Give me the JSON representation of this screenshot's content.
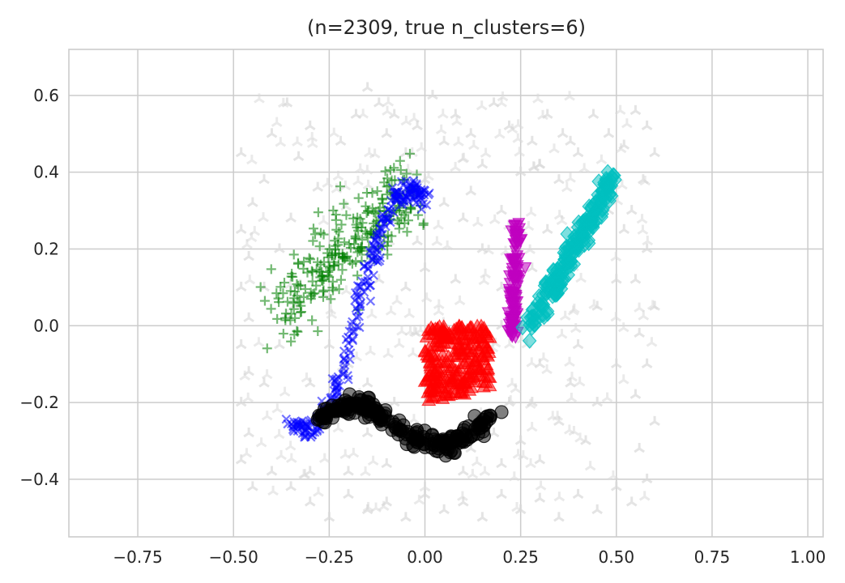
{
  "chart_data": {
    "type": "scatter",
    "title": "(n=2309, true n_clusters=6)",
    "xlabel": "",
    "ylabel": "",
    "xlim": [
      -0.93,
      1.04
    ],
    "ylim": [
      -0.55,
      0.72
    ],
    "grid": true,
    "legend": "none",
    "x_ticks": [
      -0.75,
      -0.5,
      -0.25,
      0.0,
      0.25,
      0.5,
      0.75,
      1.0
    ],
    "x_tick_labels": [
      "−0.75",
      "−0.50",
      "−0.25",
      "0.00",
      "0.25",
      "0.50",
      "0.75",
      "1.00"
    ],
    "y_ticks": [
      -0.4,
      -0.2,
      0.0,
      0.2,
      0.4,
      0.6
    ],
    "y_tick_labels": [
      "−0.4",
      "−0.2",
      "0.0",
      "0.2",
      "0.4",
      "0.6"
    ],
    "series": [
      {
        "marker": "tri",
        "color": "#d9d9d9",
        "description_points": [
          [
            -0.48,
            0.45
          ],
          [
            -0.45,
            0.32
          ],
          [
            -0.42,
            0.38
          ],
          [
            -0.4,
            0.5
          ],
          [
            -0.36,
            0.58
          ],
          [
            -0.33,
            0.44
          ],
          [
            -0.3,
            0.52
          ],
          [
            -0.28,
            0.36
          ],
          [
            -0.22,
            0.48
          ],
          [
            -0.18,
            0.55
          ],
          [
            -0.15,
            0.62
          ],
          [
            -0.12,
            0.58
          ],
          [
            -0.1,
            0.5
          ],
          [
            -0.08,
            0.55
          ],
          [
            -0.05,
            0.45
          ],
          [
            -0.02,
            0.52
          ],
          [
            0.02,
            0.6
          ],
          [
            0.05,
            0.48
          ],
          [
            0.08,
            0.55
          ],
          [
            0.12,
            0.5
          ],
          [
            0.15,
            0.42
          ],
          [
            0.18,
            0.58
          ],
          [
            0.22,
            0.52
          ],
          [
            0.28,
            0.48
          ],
          [
            0.32,
            0.55
          ],
          [
            0.36,
            0.5
          ],
          [
            0.4,
            0.45
          ],
          [
            0.44,
            0.55
          ],
          [
            0.48,
            0.5
          ],
          [
            0.52,
            0.47
          ],
          [
            0.55,
            0.56
          ],
          [
            0.58,
            0.52
          ],
          [
            0.6,
            0.45
          ],
          [
            0.57,
            0.38
          ],
          [
            0.54,
            0.3
          ],
          [
            0.58,
            0.2
          ],
          [
            0.55,
            0.12
          ],
          [
            0.6,
            0.05
          ],
          [
            0.56,
            -0.02
          ],
          [
            0.58,
            -0.1
          ],
          [
            0.55,
            -0.18
          ],
          [
            0.6,
            -0.25
          ],
          [
            0.56,
            -0.32
          ],
          [
            0.58,
            -0.4
          ],
          [
            0.54,
            -0.46
          ],
          [
            0.5,
            -0.42
          ],
          [
            0.45,
            -0.48
          ],
          [
            0.4,
            -0.44
          ],
          [
            0.35,
            -0.5
          ],
          [
            0.3,
            -0.45
          ],
          [
            0.25,
            -0.48
          ],
          [
            0.2,
            -0.44
          ],
          [
            0.15,
            -0.5
          ],
          [
            0.1,
            -0.46
          ],
          [
            0.05,
            -0.48
          ],
          [
            0.0,
            -0.44
          ],
          [
            -0.05,
            -0.5
          ],
          [
            -0.1,
            -0.46
          ],
          [
            -0.15,
            -0.48
          ],
          [
            -0.2,
            -0.44
          ],
          [
            -0.25,
            -0.5
          ],
          [
            -0.3,
            -0.46
          ],
          [
            -0.35,
            -0.42
          ],
          [
            -0.4,
            -0.38
          ],
          [
            -0.45,
            -0.42
          ],
          [
            -0.48,
            -0.35
          ],
          [
            -0.46,
            -0.28
          ],
          [
            -0.48,
            -0.2
          ],
          [
            -0.46,
            -0.12
          ],
          [
            -0.48,
            -0.05
          ],
          [
            -0.46,
            0.02
          ],
          [
            -0.48,
            0.1
          ],
          [
            -0.46,
            0.18
          ],
          [
            -0.48,
            0.25
          ],
          [
            -0.3,
            -0.38
          ],
          [
            -0.2,
            -0.38
          ],
          [
            -0.1,
            -0.36
          ],
          [
            0.1,
            -0.38
          ],
          [
            0.2,
            -0.36
          ],
          [
            0.3,
            -0.35
          ],
          [
            0.35,
            -0.25
          ],
          [
            0.38,
            -0.15
          ],
          [
            0.4,
            -0.05
          ],
          [
            0.45,
            0.05
          ],
          [
            0.5,
            0.12
          ],
          [
            0.5,
            -0.1
          ],
          [
            0.45,
            -0.2
          ],
          [
            0.42,
            -0.3
          ],
          [
            0.3,
            -0.1
          ],
          [
            0.28,
            -0.2
          ],
          [
            0.32,
            0.05
          ],
          [
            0.2,
            0.1
          ],
          [
            0.15,
            0.2
          ],
          [
            0.1,
            0.28
          ],
          [
            0.05,
            0.32
          ],
          [
            0.0,
            0.38
          ],
          [
            -0.05,
            0.3
          ],
          [
            0.08,
            0.12
          ],
          [
            0.0,
            0.15
          ],
          [
            -0.02,
            0.22
          ],
          [
            0.12,
            0.35
          ],
          [
            0.2,
            0.3
          ],
          [
            0.25,
            0.4
          ],
          [
            0.3,
            0.42
          ],
          [
            0.35,
            0.38
          ],
          [
            0.38,
            0.48
          ],
          [
            -0.38,
            0.2
          ],
          [
            -0.42,
            0.1
          ],
          [
            -0.38,
            -0.05
          ],
          [
            -0.42,
            -0.15
          ],
          [
            -0.3,
            -0.15
          ],
          [
            -0.25,
            -0.05
          ],
          [
            -0.2,
            -0.1
          ],
          [
            -0.15,
            -0.15
          ],
          [
            -0.35,
            0.28
          ],
          [
            0.22,
            -0.2
          ],
          [
            0.25,
            -0.3
          ],
          [
            0.18,
            -0.28
          ],
          [
            -0.08,
            -0.2
          ],
          [
            -0.15,
            -0.28
          ],
          [
            0.12,
            -0.32
          ],
          [
            0.4,
            0.2
          ],
          [
            0.48,
            0.3
          ],
          [
            0.52,
            0.25
          ],
          [
            0.32,
            0.25
          ],
          [
            0.28,
            0.15
          ],
          [
            0.2,
            0.0
          ],
          [
            0.15,
            -0.05
          ],
          [
            -0.05,
            0.1
          ],
          [
            -0.12,
            0.12
          ]
        ]
      },
      {
        "marker": "plus",
        "color": "#008000"
      },
      {
        "marker": "x",
        "color": "#0000ff"
      },
      {
        "marker": "triangle",
        "color": "#ff0000"
      },
      {
        "marker": "triangle-down",
        "color": "#bf00bf"
      },
      {
        "marker": "diamond",
        "color": "#00bfbf"
      },
      {
        "marker": "circle",
        "color": "#000000"
      }
    ]
  }
}
